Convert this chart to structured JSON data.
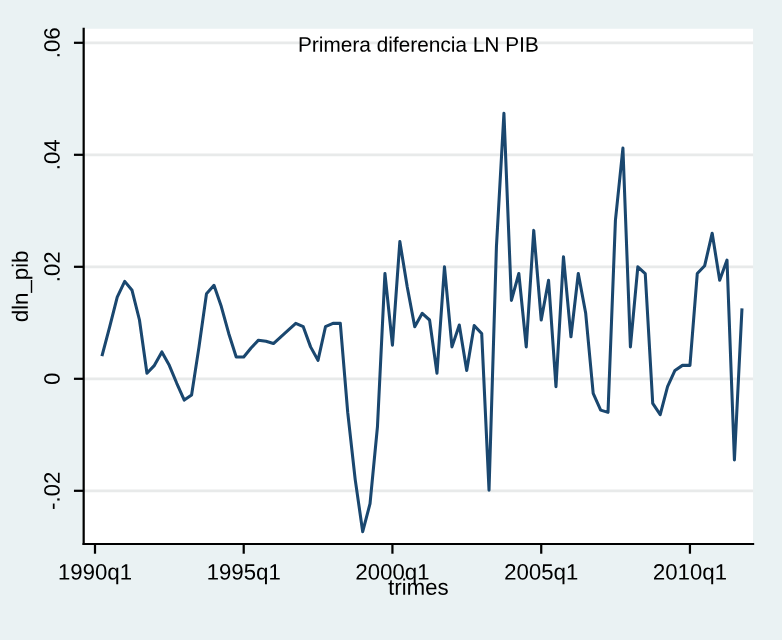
{
  "chart_data": {
    "type": "line",
    "title": "Primera diferencia LN PIB",
    "xlabel": "trimes",
    "ylabel": "dln_pib",
    "x": [
      "1990-04",
      "1990-07",
      "1990-10",
      "1991-01",
      "1991-04",
      "1991-07",
      "1991-10",
      "1992-01",
      "1992-04",
      "1992-07",
      "1992-10",
      "1993-01",
      "1993-04",
      "1993-07",
      "1993-10",
      "1994-01",
      "1994-04",
      "1994-07",
      "1994-10",
      "1995-01",
      "1995-04",
      "1995-07",
      "1995-10",
      "1996-01",
      "1996-04",
      "1996-07",
      "1996-10",
      "1997-01",
      "1997-04",
      "1997-07",
      "1997-10",
      "1998-01",
      "1998-04",
      "1998-07",
      "1998-10",
      "1999-01",
      "1999-04",
      "1999-07",
      "1999-10",
      "2000-01",
      "2000-04",
      "2000-07",
      "2000-10",
      "2001-01",
      "2001-04",
      "2001-07",
      "2001-10",
      "2002-01",
      "2002-04",
      "2002-07",
      "2002-10",
      "2003-01",
      "2003-04",
      "2003-07",
      "2003-10",
      "2004-01",
      "2004-04",
      "2004-07",
      "2004-10",
      "2005-01",
      "2005-04",
      "2005-07",
      "2005-10",
      "2006-01",
      "2006-04",
      "2006-07",
      "2006-10",
      "2007-01",
      "2007-04",
      "2007-07",
      "2007-10",
      "2008-01",
      "2008-04",
      "2008-07",
      "2008-10",
      "2009-01",
      "2009-04",
      "2009-07",
      "2009-10",
      "2010-01",
      "2010-04",
      "2010-07",
      "2010-10",
      "2011-01",
      "2011-04",
      "2011-07",
      "2011-10"
    ],
    "series": [
      {
        "color": "#1a476f",
        "values": [
          0.0043,
          0.0093,
          0.0146,
          0.0174,
          0.0158,
          0.0105,
          0.001,
          0.0024,
          0.0048,
          0.0024,
          -0.0008,
          -0.0038,
          -0.0029,
          0.0057,
          0.0152,
          0.0167,
          0.0129,
          0.0081,
          0.0039,
          0.0039,
          0.0055,
          0.0069,
          0.0067,
          0.0063,
          0.0075,
          0.0087,
          0.0099,
          0.0093,
          0.0057,
          0.0033,
          0.0093,
          0.0099,
          0.0099,
          -0.006,
          -0.018,
          -0.0273,
          -0.0223,
          -0.0086,
          0.0188,
          0.006,
          0.0245,
          0.0164,
          0.0093,
          0.0117,
          0.0105,
          0.001,
          0.02,
          0.0057,
          0.0096,
          0.0015,
          0.0095,
          0.0081,
          -0.0199,
          0.0236,
          0.0474,
          0.014,
          0.0188,
          0.0057,
          0.0265,
          0.0105,
          0.0176,
          -0.0014,
          0.0218,
          0.0075,
          0.0188,
          0.0117,
          -0.0026,
          -0.0056,
          -0.006,
          0.0283,
          0.0412,
          0.0057,
          0.02,
          0.0188,
          -0.0044,
          -0.0064,
          -0.0014,
          0.0015,
          0.0024,
          0.0024,
          0.0188,
          0.0202,
          0.026,
          0.0176,
          0.0212,
          -0.0145,
          0.0123
        ]
      }
    ],
    "xlim": [
      "1989-08-15",
      "2012-02-15"
    ],
    "ylim": [
      -0.0295,
      0.0625
    ],
    "xticks": [
      {
        "value": "1990-01",
        "label": "1990q1"
      },
      {
        "value": "1995-01",
        "label": "1995q1"
      },
      {
        "value": "2000-01",
        "label": "2000q1"
      },
      {
        "value": "2005-01",
        "label": "2005q1"
      },
      {
        "value": "2010-01",
        "label": "2010q1"
      }
    ],
    "yticks": [
      {
        "value": -0.02,
        "label": "-.02"
      },
      {
        "value": 0,
        "label": "0"
      },
      {
        "value": 0.02,
        "label": ".02"
      },
      {
        "value": 0.04,
        "label": ".04"
      },
      {
        "value": 0.06,
        "label": ".06"
      }
    ],
    "grid": "y",
    "marker": "none",
    "line_style": "solid"
  }
}
